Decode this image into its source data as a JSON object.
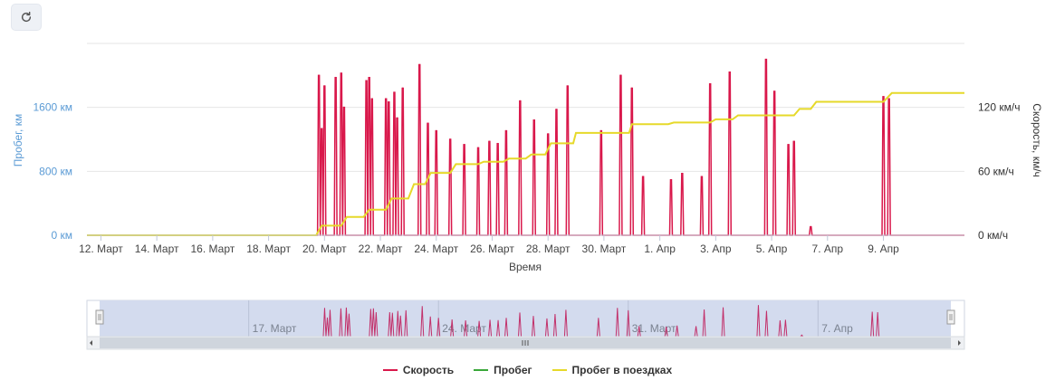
{
  "toolbar": {
    "refresh_icon": "refresh-icon"
  },
  "chart_data": {
    "type": "line",
    "x_unit": "day (12 = 12 March, 32 = 1 April)",
    "xlabel": "Время",
    "ylabel_left": "Пробег, км",
    "ylabel_right": "Скорость, км/ч",
    "x_range": [
      11.5,
      42.9
    ],
    "x_ticks": [
      {
        "x": 12,
        "label": "12. Март"
      },
      {
        "x": 14,
        "label": "14. Март"
      },
      {
        "x": 16,
        "label": "16. Март"
      },
      {
        "x": 18,
        "label": "18. Март"
      },
      {
        "x": 20,
        "label": "20. Март"
      },
      {
        "x": 22,
        "label": "22. Март"
      },
      {
        "x": 24,
        "label": "24. Март"
      },
      {
        "x": 26,
        "label": "26. Март"
      },
      {
        "x": 28,
        "label": "28. Март"
      },
      {
        "x": 30,
        "label": "30. Март"
      },
      {
        "x": 32,
        "label": "1. Апр"
      },
      {
        "x": 34,
        "label": "3. Апр"
      },
      {
        "x": 36,
        "label": "5. Апр"
      },
      {
        "x": 38,
        "label": "7. Апр"
      },
      {
        "x": 40,
        "label": "9. Апр"
      }
    ],
    "y_left": {
      "min": 0,
      "max": 2400,
      "ticks": [
        0,
        800,
        1600
      ],
      "tick_labels": [
        "0 км",
        "800 км",
        "1600 км"
      ]
    },
    "y_right": {
      "min": 0,
      "max": 180,
      "ticks": [
        0,
        60,
        120
      ],
      "tick_labels": [
        "0 км/ч",
        "60 км/ч",
        "120 км/ч"
      ]
    },
    "legend": {
      "placement": "bottom-center"
    },
    "series": [
      {
        "name": "Скорость",
        "axis": "right",
        "color": "#d9184b",
        "spikes": [
          [
            19.8,
            150
          ],
          [
            19.9,
            100
          ],
          [
            20.0,
            140
          ],
          [
            20.4,
            148
          ],
          [
            20.6,
            152
          ],
          [
            20.7,
            120
          ],
          [
            21.5,
            145
          ],
          [
            21.6,
            148
          ],
          [
            21.7,
            128
          ],
          [
            22.2,
            128
          ],
          [
            22.3,
            125
          ],
          [
            22.5,
            134
          ],
          [
            22.6,
            110
          ],
          [
            22.8,
            138
          ],
          [
            23.4,
            160
          ],
          [
            23.7,
            105
          ],
          [
            24.0,
            98
          ],
          [
            24.5,
            90
          ],
          [
            25.0,
            85
          ],
          [
            25.5,
            82
          ],
          [
            25.9,
            88
          ],
          [
            26.2,
            86
          ],
          [
            26.5,
            98
          ],
          [
            27.0,
            126
          ],
          [
            27.5,
            108
          ],
          [
            28.0,
            95
          ],
          [
            28.3,
            118
          ],
          [
            28.7,
            140
          ],
          [
            29.9,
            98
          ],
          [
            30.6,
            150
          ],
          [
            31.0,
            138
          ],
          [
            31.4,
            55
          ],
          [
            32.4,
            52
          ],
          [
            32.8,
            58
          ],
          [
            33.5,
            55
          ],
          [
            33.8,
            142
          ],
          [
            34.5,
            153
          ],
          [
            35.8,
            165
          ],
          [
            36.1,
            135
          ],
          [
            36.6,
            85
          ],
          [
            36.8,
            88
          ],
          [
            37.4,
            8
          ],
          [
            40.0,
            130
          ],
          [
            40.2,
            128
          ]
        ]
      },
      {
        "name": "Пробег",
        "axis": "left",
        "color": "#3aa83a",
        "points": []
      },
      {
        "name": "Пробег в поездках",
        "axis": "left",
        "color": "#e6d92a",
        "points": [
          [
            11.5,
            0
          ],
          [
            19.7,
            0
          ],
          [
            19.9,
            120
          ],
          [
            20.6,
            120
          ],
          [
            20.8,
            230
          ],
          [
            21.4,
            230
          ],
          [
            21.6,
            320
          ],
          [
            22.2,
            320
          ],
          [
            22.4,
            460
          ],
          [
            23.0,
            460
          ],
          [
            23.2,
            640
          ],
          [
            23.6,
            640
          ],
          [
            23.8,
            780
          ],
          [
            24.5,
            780
          ],
          [
            24.7,
            890
          ],
          [
            25.5,
            890
          ],
          [
            25.7,
            920
          ],
          [
            26.4,
            920
          ],
          [
            26.6,
            960
          ],
          [
            27.2,
            960
          ],
          [
            27.4,
            1010
          ],
          [
            27.9,
            1010
          ],
          [
            28.1,
            1150
          ],
          [
            28.9,
            1150
          ],
          [
            29.0,
            1280
          ],
          [
            30.9,
            1280
          ],
          [
            31.0,
            1390
          ],
          [
            32.3,
            1390
          ],
          [
            32.5,
            1410
          ],
          [
            33.8,
            1410
          ],
          [
            34.0,
            1450
          ],
          [
            34.6,
            1450
          ],
          [
            34.8,
            1500
          ],
          [
            36.8,
            1500
          ],
          [
            37.0,
            1580
          ],
          [
            37.4,
            1580
          ],
          [
            37.6,
            1670
          ],
          [
            40.0,
            1670
          ],
          [
            40.3,
            1780
          ],
          [
            42.9,
            1780
          ]
        ]
      }
    ],
    "navigator": {
      "x_ticks": [
        {
          "x": 17,
          "label": "17. Март"
        },
        {
          "x": 24,
          "label": "24. Март"
        },
        {
          "x": 31,
          "label": "31. Март"
        },
        {
          "x": 38,
          "label": "7. Апр"
        }
      ]
    }
  }
}
